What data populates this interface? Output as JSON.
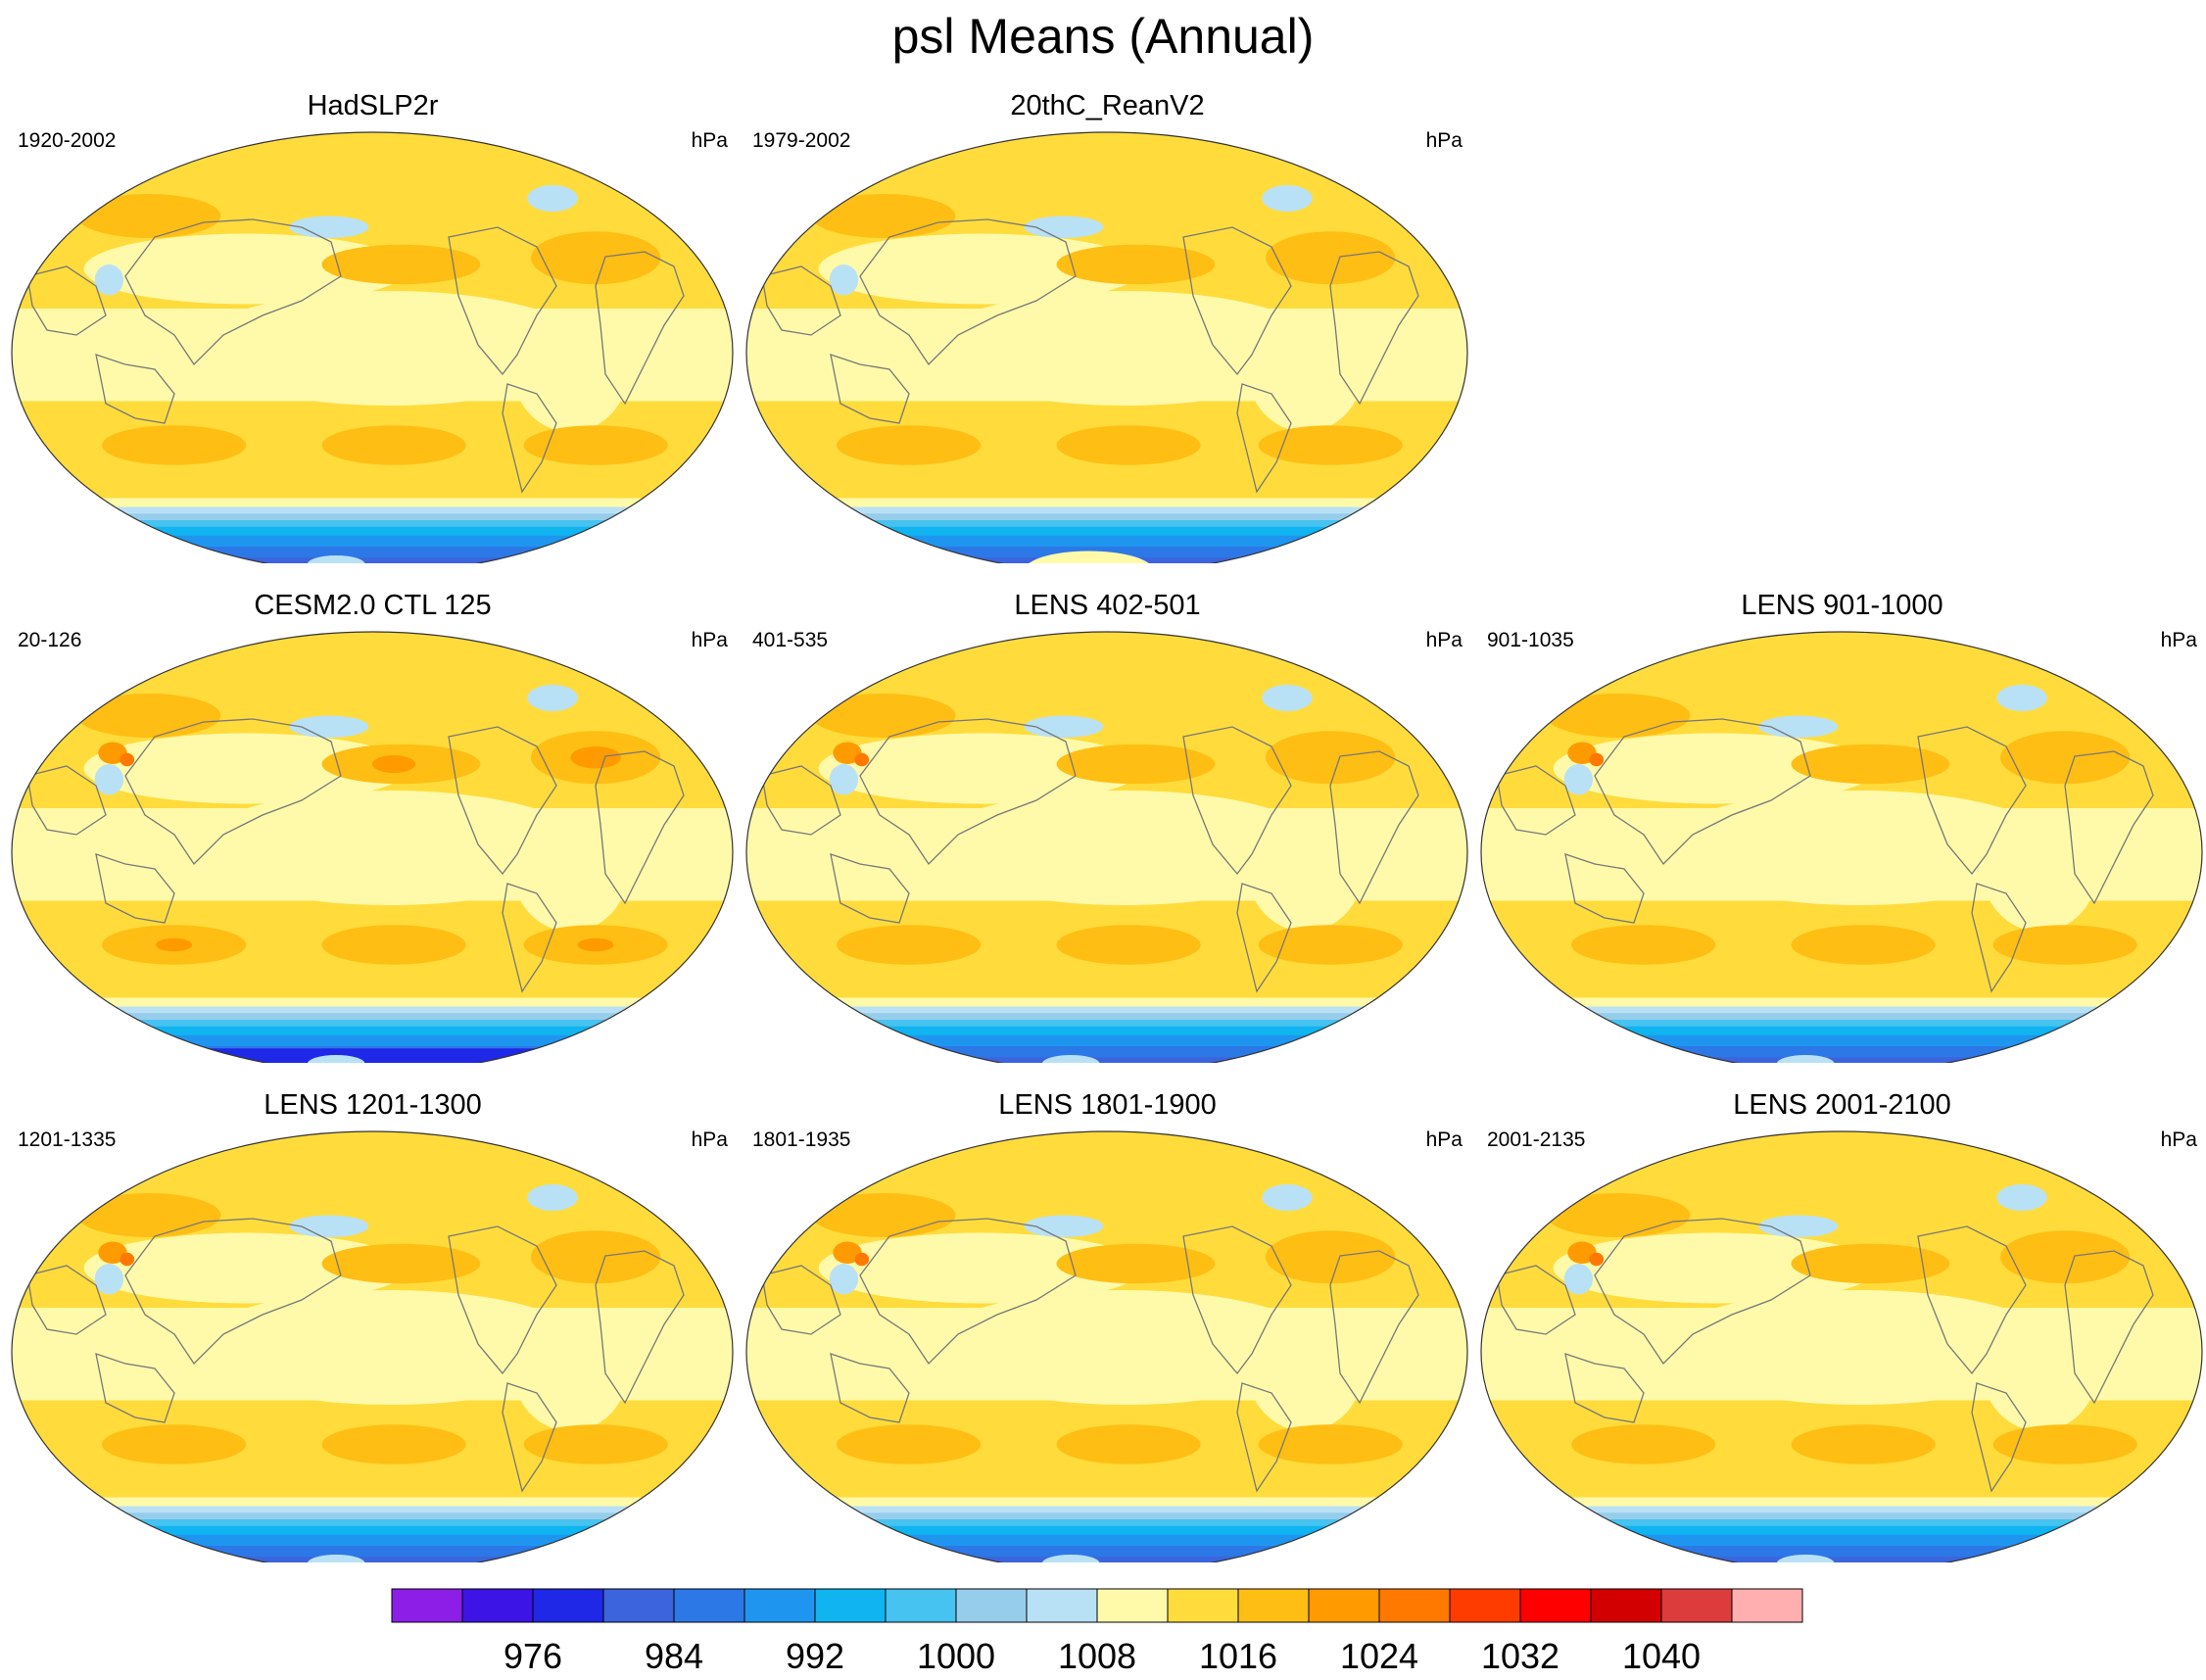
{
  "title": "psl Means (Annual)",
  "panels": [
    {
      "title": "HadSLP2r",
      "left": "1920-2002",
      "right": "hPa"
    },
    {
      "title": "20thC_ReanV2",
      "left": "1979-2002",
      "right": "hPa"
    },
    {
      "title": "CESM2.0 CTL 125",
      "left": "20-126",
      "right": "hPa"
    },
    {
      "title": "LENS 402-501",
      "left": "401-535",
      "right": "hPa"
    },
    {
      "title": "LENS 901-1000",
      "left": "901-1035",
      "right": "hPa"
    },
    {
      "title": "LENS 1201-1300",
      "left": "1201-1335",
      "right": "hPa"
    },
    {
      "title": "LENS 1801-1900",
      "left": "1801-1935",
      "right": "hPa"
    },
    {
      "title": "LENS 2001-2100",
      "left": "2001-2135",
      "right": "hPa"
    }
  ],
  "colorbar": {
    "colors": [
      "#8c1ee8",
      "#3c14e6",
      "#1e28e6",
      "#3c64dc",
      "#2c78e6",
      "#1e96f0",
      "#10b4f0",
      "#46c3f0",
      "#96cdeb",
      "#b9e1f5",
      "#fffaaa",
      "#ffdc3c",
      "#ffbe14",
      "#ff9b00",
      "#ff7800",
      "#ff3c00",
      "#ff0000",
      "#d20000",
      "#dc3c3c",
      "#ffafaf"
    ],
    "tick_labels": [
      "976",
      "984",
      "992",
      "1000",
      "1008",
      "1016",
      "1024",
      "1032",
      "1040"
    ]
  }
}
